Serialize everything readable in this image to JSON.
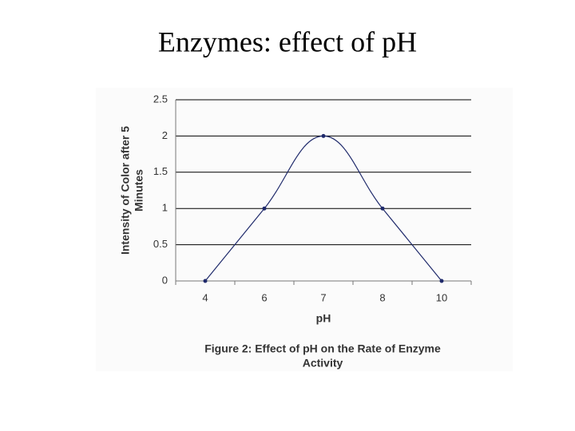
{
  "slide_title": "Enzymes: effect of pH",
  "chart_data": {
    "type": "line",
    "y_label": [
      "Intensity of Color after 5",
      "Minutes"
    ],
    "x_label": "pH",
    "caption": [
      "Figure 2: Effect of pH on the Rate of Enzyme",
      "Activity"
    ],
    "categories": [
      "4",
      "6",
      "7",
      "8",
      "10"
    ],
    "values": [
      0,
      1,
      2,
      1,
      0
    ],
    "color": "#1f2a6b",
    "ylim": [
      0,
      2.5
    ],
    "yticks": [
      0,
      0.5,
      1,
      1.5,
      2,
      2.5
    ],
    "grid": true
  }
}
